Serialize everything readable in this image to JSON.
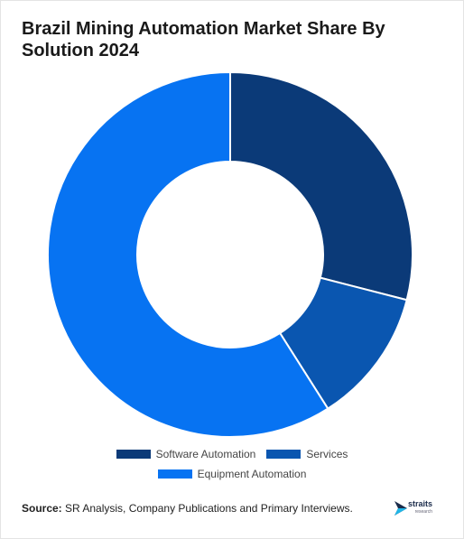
{
  "title": "Brazil Mining Automation Market Share By Solution 2024",
  "source_label": "Source:",
  "source_text": "SR Analysis, Company Publications and Primary Interviews.",
  "logo": {
    "name": "straits",
    "sub": "research"
  },
  "chart_data": {
    "type": "pie",
    "donut": true,
    "title": "Brazil Mining Automation Market Share By Solution 2024",
    "categories": [
      "Software Automation",
      "Services",
      "Equipment Automation"
    ],
    "values": [
      29,
      12,
      59
    ],
    "colors": [
      "#0b3a78",
      "#0a56b0",
      "#0773f2"
    ],
    "legend_position": "bottom"
  }
}
